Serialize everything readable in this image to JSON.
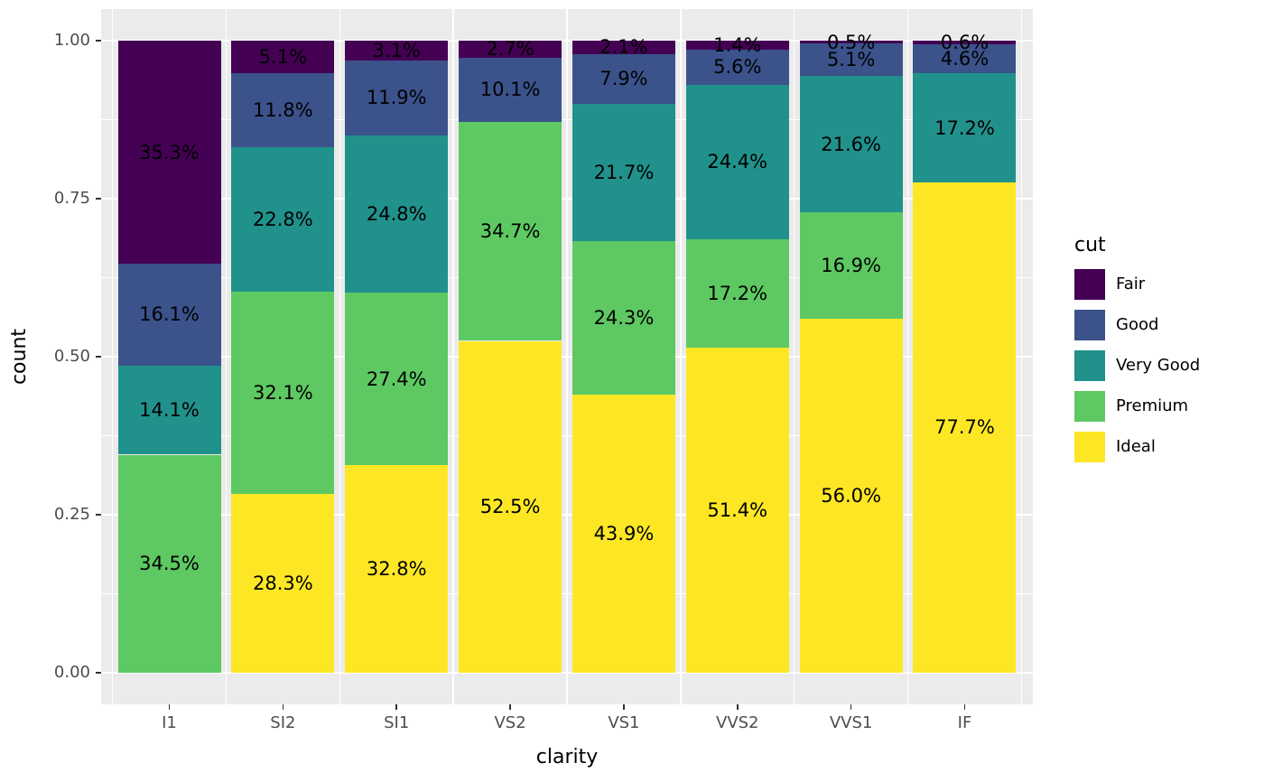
{
  "chart_data": {
    "type": "bar",
    "variant": "stacked_fill_proportion",
    "title": "",
    "xlabel": "clarity",
    "ylabel": "count",
    "ylim": [
      0,
      1
    ],
    "grid": true,
    "ytick_values": [
      0,
      0.25,
      0.5,
      0.75,
      1
    ],
    "ytick_labels": [
      "0.00",
      "0.25",
      "0.50",
      "0.75",
      "1.00"
    ],
    "ytick_minor_values": [
      0.125,
      0.375,
      0.625,
      0.875
    ],
    "categories": [
      "I1",
      "SI2",
      "SI1",
      "VS2",
      "VS1",
      "VVS2",
      "VVS1",
      "IF"
    ],
    "legend": {
      "title": "cut",
      "position": "right",
      "entries": [
        "Fair",
        "Good",
        "Very Good",
        "Premium",
        "Ideal"
      ]
    },
    "series": [
      {
        "name": "Fair",
        "color": "#440154",
        "values": [
          35.3,
          5.1,
          3.1,
          2.7,
          2.1,
          1.4,
          0.5,
          0.6
        ]
      },
      {
        "name": "Good",
        "color": "#3B528B",
        "values": [
          16.1,
          11.8,
          11.9,
          10.1,
          7.9,
          5.6,
          5.1,
          4.6
        ]
      },
      {
        "name": "Very Good",
        "color": "#21918C",
        "values": [
          14.1,
          22.8,
          24.8,
          0,
          21.7,
          24.4,
          21.6,
          17.2
        ]
      },
      {
        "name": "Premium",
        "color": "#5EC962",
        "values": [
          34.5,
          32.1,
          27.4,
          34.7,
          24.3,
          17.2,
          16.9,
          0
        ]
      },
      {
        "name": "Ideal",
        "color": "#FDE725",
        "values": [
          0,
          28.3,
          32.8,
          52.5,
          43.9,
          51.4,
          56.0,
          77.7
        ]
      }
    ],
    "bar_label_format": "one_decimal_percent",
    "colors": {
      "panel_background": "#EBEBEB",
      "gridline": "#FFFFFF",
      "axis_text": "#4D4D4D",
      "tick_mark": "#333333",
      "bar_label": "#000000"
    }
  }
}
